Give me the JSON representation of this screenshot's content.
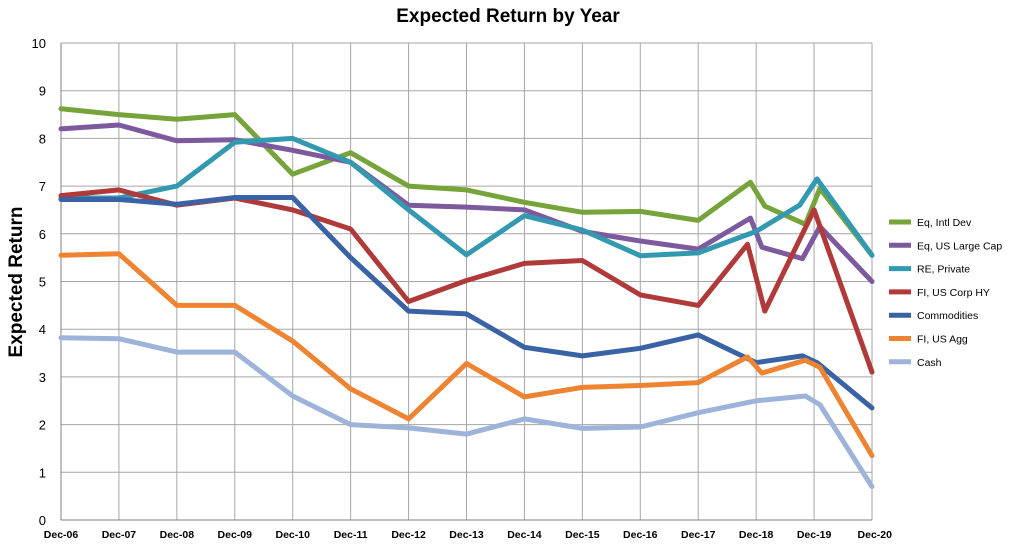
{
  "chart_data": {
    "type": "line",
    "title": "Expected Return by Year",
    "xlabel": "",
    "ylabel": "Expected Return",
    "ylim": [
      0,
      10
    ],
    "yticks": [
      0,
      1,
      2,
      3,
      4,
      5,
      6,
      7,
      8,
      9,
      10
    ],
    "grid": true,
    "legend_position": "right",
    "categories": [
      "Dec-06",
      "Dec-07",
      "Dec-08",
      "Dec-09",
      "Dec-10",
      "Dec-11",
      "Dec-12",
      "Dec-13",
      "Dec-14",
      "Dec-15",
      "Dec-16",
      "Dec-17",
      "Dec-18",
      "Dec-19",
      "Dec-20"
    ],
    "series": [
      {
        "name": "Eq, Intl Dev",
        "color": "#77a33b",
        "points": [
          [
            0,
            8.62
          ],
          [
            1,
            8.5
          ],
          [
            2,
            8.4
          ],
          [
            3,
            8.5
          ],
          [
            4,
            7.25
          ],
          [
            5,
            7.7
          ],
          [
            6,
            7.0
          ],
          [
            7,
            6.92
          ],
          [
            8,
            6.66
          ],
          [
            9,
            6.45
          ],
          [
            10,
            6.47
          ],
          [
            11,
            6.28
          ],
          [
            11.9,
            7.08
          ],
          [
            12.15,
            6.58
          ],
          [
            12.85,
            6.2
          ],
          [
            13.1,
            6.95
          ],
          [
            14,
            5.55
          ]
        ]
      },
      {
        "name": "Eq, US Large Cap",
        "color": "#7d5a9e",
        "points": [
          [
            0,
            8.2
          ],
          [
            1,
            8.28
          ],
          [
            2,
            7.95
          ],
          [
            3,
            7.97
          ],
          [
            4,
            7.75
          ],
          [
            5,
            7.5
          ],
          [
            6,
            6.6
          ],
          [
            7,
            6.56
          ],
          [
            8,
            6.5
          ],
          [
            9,
            6.05
          ],
          [
            10,
            5.85
          ],
          [
            11,
            5.68
          ],
          [
            11.9,
            6.33
          ],
          [
            12.1,
            5.72
          ],
          [
            12.8,
            5.48
          ],
          [
            13.1,
            6.15
          ],
          [
            14,
            5.0
          ]
        ]
      },
      {
        "name": "RE, Private",
        "color": "#3399b0",
        "points": [
          [
            0,
            6.75
          ],
          [
            1,
            6.75
          ],
          [
            2,
            7.0
          ],
          [
            3,
            7.92
          ],
          [
            4,
            8.0
          ],
          [
            5,
            7.5
          ],
          [
            6,
            6.5
          ],
          [
            7,
            5.56
          ],
          [
            8,
            6.38
          ],
          [
            9,
            6.08
          ],
          [
            10,
            5.54
          ],
          [
            11,
            5.6
          ],
          [
            12,
            6.05
          ],
          [
            12.75,
            6.6
          ],
          [
            13.05,
            7.15
          ],
          [
            14,
            5.55
          ]
        ]
      },
      {
        "name": "FI, US Corp HY",
        "color": "#b03a3a",
        "points": [
          [
            0,
            6.8
          ],
          [
            1,
            6.92
          ],
          [
            2,
            6.6
          ],
          [
            3,
            6.75
          ],
          [
            4,
            6.5
          ],
          [
            5,
            6.1
          ],
          [
            6,
            4.58
          ],
          [
            7,
            5.02
          ],
          [
            8,
            5.38
          ],
          [
            9,
            5.44
          ],
          [
            10,
            4.72
          ],
          [
            11,
            4.5
          ],
          [
            11.85,
            5.78
          ],
          [
            12.15,
            4.38
          ],
          [
            13.0,
            6.5
          ],
          [
            14,
            3.1
          ]
        ]
      },
      {
        "name": "Commodities",
        "color": "#3a63a6",
        "points": [
          [
            0,
            6.72
          ],
          [
            1,
            6.72
          ],
          [
            2,
            6.62
          ],
          [
            3,
            6.76
          ],
          [
            4,
            6.76
          ],
          [
            5,
            5.5
          ],
          [
            6,
            4.38
          ],
          [
            7,
            4.32
          ],
          [
            8,
            3.62
          ],
          [
            9,
            3.44
          ],
          [
            10,
            3.6
          ],
          [
            11,
            3.88
          ],
          [
            12,
            3.3
          ],
          [
            12.8,
            3.44
          ],
          [
            13.05,
            3.3
          ],
          [
            14,
            2.35
          ]
        ]
      },
      {
        "name": "FI, US Agg",
        "color": "#ee8432",
        "points": [
          [
            0,
            5.55
          ],
          [
            1,
            5.58
          ],
          [
            2,
            4.5
          ],
          [
            3,
            4.5
          ],
          [
            4,
            3.75
          ],
          [
            5,
            2.75
          ],
          [
            6,
            2.12
          ],
          [
            7,
            3.28
          ],
          [
            8,
            2.58
          ],
          [
            9,
            2.78
          ],
          [
            10,
            2.82
          ],
          [
            11,
            2.88
          ],
          [
            11.85,
            3.42
          ],
          [
            12.1,
            3.08
          ],
          [
            12.85,
            3.35
          ],
          [
            13.1,
            3.2
          ],
          [
            14,
            1.35
          ]
        ]
      },
      {
        "name": "Cash",
        "color": "#9db3d9",
        "points": [
          [
            0,
            3.82
          ],
          [
            1,
            3.8
          ],
          [
            2,
            3.52
          ],
          [
            3,
            3.52
          ],
          [
            4,
            2.6
          ],
          [
            5,
            2.0
          ],
          [
            6,
            1.93
          ],
          [
            7,
            1.8
          ],
          [
            8,
            2.12
          ],
          [
            9,
            1.92
          ],
          [
            10,
            1.95
          ],
          [
            11,
            2.25
          ],
          [
            12,
            2.5
          ],
          [
            12.85,
            2.6
          ],
          [
            13.1,
            2.42
          ],
          [
            14,
            0.7
          ]
        ]
      }
    ]
  }
}
